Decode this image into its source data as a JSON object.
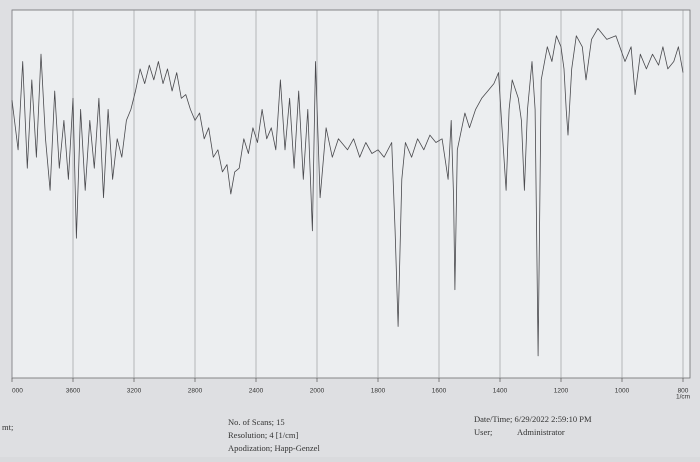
{
  "chart_data": {
    "type": "line",
    "x": [
      4000,
      3960,
      3930,
      3900,
      3870,
      3840,
      3810,
      3780,
      3750,
      3720,
      3690,
      3660,
      3630,
      3600,
      3578,
      3550,
      3520,
      3490,
      3460,
      3430,
      3400,
      3370,
      3340,
      3310,
      3280,
      3250,
      3220,
      3190,
      3160,
      3130,
      3100,
      3070,
      3040,
      3010,
      2980,
      2950,
      2920,
      2890,
      2860,
      2830,
      2800,
      2770,
      2740,
      2710,
      2680,
      2650,
      2620,
      2590,
      2565,
      2540,
      2510,
      2480,
      2450,
      2420,
      2390,
      2360,
      2330,
      2300,
      2270,
      2240,
      2210,
      2180,
      2150,
      2120,
      2090,
      2060,
      2030,
      2010,
      1990,
      1970,
      1950,
      1930,
      1900,
      1880,
      1860,
      1840,
      1820,
      1800,
      1780,
      1755,
      1744,
      1734,
      1722,
      1710,
      1690,
      1670,
      1650,
      1630,
      1610,
      1590,
      1570,
      1560,
      1552,
      1548,
      1540,
      1515,
      1500,
      1480,
      1460,
      1440,
      1420,
      1405,
      1395,
      1380,
      1370,
      1360,
      1340,
      1330,
      1320,
      1310,
      1295,
      1285,
      1280,
      1275,
      1265,
      1245,
      1230,
      1215,
      1200,
      1190,
      1183,
      1177,
      1165,
      1150,
      1130,
      1118,
      1100,
      1079,
      1050,
      1020,
      990,
      970,
      957,
      940,
      920,
      900,
      880,
      866,
      850,
      830,
      815,
      800
    ],
    "values": [
      75.5,
      62,
      86,
      57,
      81,
      60,
      88,
      65,
      51,
      78,
      57,
      70,
      54,
      76,
      38,
      73,
      51,
      70,
      57,
      76,
      49,
      73,
      54,
      65,
      60,
      70,
      73,
      78,
      84,
      80,
      85,
      81,
      86,
      80,
      84,
      78,
      83,
      76,
      77,
      73,
      70,
      72,
      65,
      68,
      60,
      62,
      56,
      58,
      50,
      56,
      57,
      65,
      61,
      68,
      64,
      73,
      65,
      68,
      62,
      81,
      62,
      76,
      57,
      78,
      54,
      73,
      40,
      86,
      49,
      68,
      60,
      65,
      62,
      65,
      60,
      64,
      61,
      62,
      60,
      64,
      40,
      14,
      54,
      64,
      60,
      65,
      62,
      66,
      64,
      65,
      54,
      70,
      49,
      24,
      62,
      72,
      68,
      73,
      76,
      78,
      80,
      83,
      70,
      51,
      73,
      81,
      76,
      70,
      51,
      73,
      86,
      73,
      40,
      6,
      81,
      90,
      86,
      93,
      90,
      84,
      73,
      66,
      84,
      93,
      90,
      81,
      92,
      95,
      92,
      93,
      86,
      90,
      77,
      88,
      84,
      88,
      85,
      90,
      84,
      86,
      90,
      83
    ],
    "color": "#4a4a4e",
    "xlim": [
      4000,
      800
    ],
    "xticks": [
      {
        "value": 4000,
        "label": "000"
      },
      3600,
      3200,
      2800,
      2400,
      2000,
      1800,
      1600,
      1400,
      1200,
      1000,
      800
    ],
    "ylim": [
      0,
      100
    ],
    "x_axis_label": "1/cm",
    "x_scale_change": {
      "at": 2000,
      "factor": 2
    },
    "grid": true
  },
  "footer": {
    "left": "mt;",
    "scans": "No. of Scans; 15",
    "resolution": "Resolution;   4 [1/cm]",
    "apodization": "Apodization;   Happ-Genzel",
    "datetime": "Date/Time; 6/29/2022 2:59:10 PM",
    "user_label": "User;",
    "user": "Administrator"
  }
}
